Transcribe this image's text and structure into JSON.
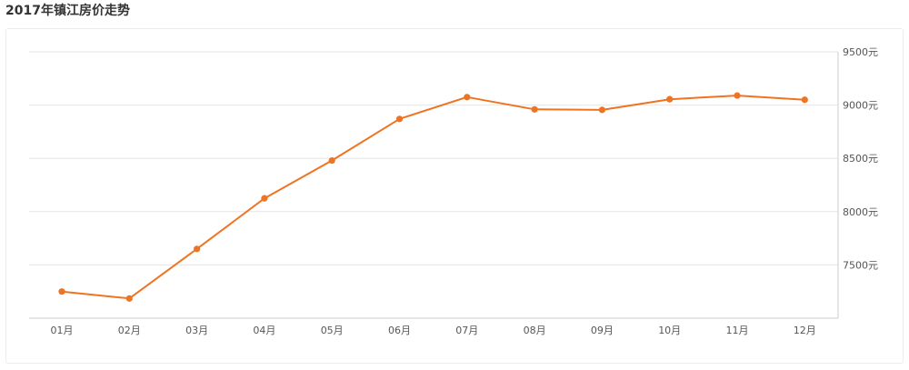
{
  "page": {
    "title": "2017年镇江房价走势"
  },
  "colors": {
    "line": "#ee7422",
    "grid": "#e6e6e6",
    "axis": "#cccccc",
    "text": "#555555"
  },
  "chart_data": {
    "type": "line",
    "title": "2017年镇江房价走势",
    "xlabel": "",
    "ylabel": "",
    "categories": [
      "01月",
      "02月",
      "03月",
      "04月",
      "05月",
      "06月",
      "07月",
      "08月",
      "09月",
      "10月",
      "11月",
      "12月"
    ],
    "series": [
      {
        "values": [
          7250,
          7185,
          7650,
          8125,
          8480,
          8870,
          9075,
          8960,
          8955,
          9055,
          9090,
          9050
        ]
      }
    ],
    "yticks": [
      7500,
      8000,
      8500,
      9000,
      9500
    ],
    "ytick_labels": [
      "7500元",
      "8000元",
      "8500元",
      "9000元",
      "9500元"
    ],
    "ylim": [
      7000,
      9500
    ],
    "grid": true,
    "y_axis_position": "right",
    "legend": "none"
  }
}
